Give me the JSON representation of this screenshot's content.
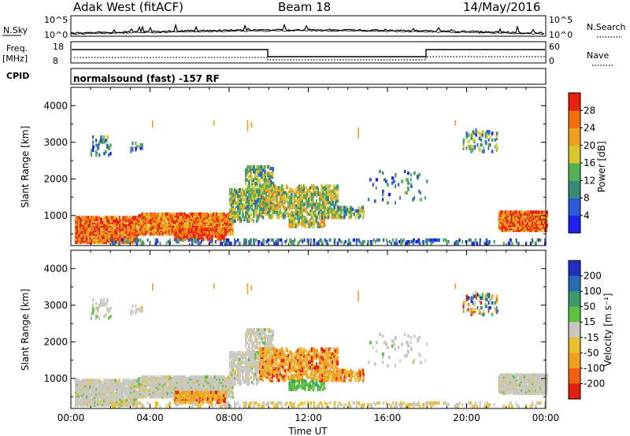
{
  "header": {
    "station": "Adak West (fitACF)",
    "beam": "Beam 18",
    "date": "14/May/2016"
  },
  "noise_panel": {
    "left_label": "N.Sky",
    "right_label": "N.Search",
    "ticks_top": "10^5",
    "ticks_bottom": "10^0"
  },
  "freq_panel": {
    "left_label_1": "Freq.",
    "left_label_2": "[MHz]",
    "left_tick_top": "18",
    "left_tick_bottom": "8",
    "right_label": "Nave",
    "right_tick_top": "60",
    "right_tick_bottom": "0",
    "cpid_label": "CPID",
    "cpid_value": "normalsound (fast) -157 RF"
  },
  "chart_data": [
    {
      "type": "heatmap",
      "name": "power-panel",
      "ylabel": "Slant Range [km]",
      "yticks": [
        "1000",
        "2000",
        "3000",
        "4000"
      ],
      "ylim": [
        180,
        4500
      ],
      "colorbar": {
        "label": "Power [dB]",
        "ticks": [
          "4",
          "8",
          "12",
          "16",
          "20",
          "24",
          "28"
        ],
        "colors": [
          "#1f1ff0",
          "#2a5ad8",
          "#3a8a7a",
          "#55b055",
          "#d8c830",
          "#f0a020",
          "#f07010",
          "#e82010"
        ]
      }
    },
    {
      "type": "heatmap",
      "name": "velocity-panel",
      "ylabel": "Slant Range [km]",
      "yticks": [
        "1000",
        "2000",
        "3000",
        "4000"
      ],
      "ylim": [
        180,
        4500
      ],
      "colorbar": {
        "label": "Velocity [m s⁻¹]",
        "ticks": [
          "200",
          "100",
          "50",
          "15",
          "-15",
          "-50",
          "-100",
          "-200"
        ],
        "colors": [
          "#2030c0",
          "#2a6ab0",
          "#3a9a6a",
          "#60c040",
          "#c8c8c0",
          "#e8c030",
          "#f0a020",
          "#f06010",
          "#e02010"
        ]
      }
    }
  ],
  "x_axis": {
    "ticks": [
      "00:00",
      "04:00",
      "08:00",
      "12:00",
      "16:00",
      "20:00",
      "00:00"
    ],
    "label": "Time UT"
  }
}
